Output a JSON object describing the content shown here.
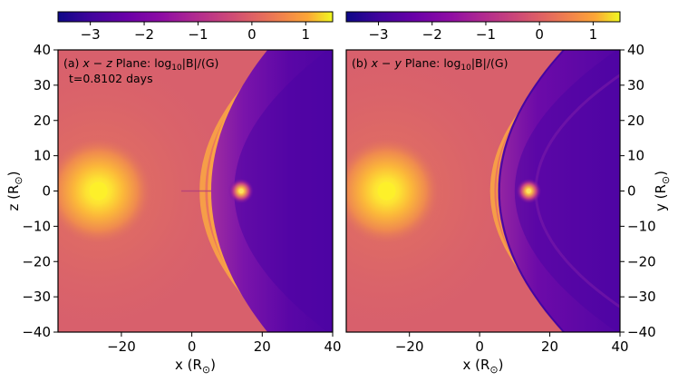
{
  "chart_data": [
    {
      "type": "heatmap",
      "panel_label": "(a)",
      "plane": "x − z",
      "title_mid": " Plane: log",
      "title_sub": "10",
      "title_tail": "|B|/(G)",
      "time_text": "t=0.8102 days",
      "xlabel": "x (R",
      "xlabel_sub": "⊙",
      "ylabel": "z (R",
      "ylabel_sub": "⊙",
      "xlim": [
        -38,
        40
      ],
      "ylim": [
        -40,
        40
      ],
      "xticks": [
        -20,
        0,
        20,
        40
      ],
      "yticks": [
        -40,
        -30,
        -20,
        -10,
        0,
        10,
        20,
        30,
        40
      ],
      "xtick_labels": [
        "−20",
        "0",
        "20",
        "40"
      ],
      "ytick_labels": [
        "−40",
        "−30",
        "−20",
        "−10",
        "0",
        "10",
        "20",
        "30",
        "40"
      ],
      "sources": [
        {
          "name": "Sun",
          "x": -26.5,
          "y": 0
        },
        {
          "name": "body",
          "x": 14,
          "y": 0
        }
      ],
      "colorbar": {
        "range": [
          -3.6,
          1.5
        ],
        "ticks": [
          -3,
          -2,
          -1,
          0,
          1
        ],
        "tick_labels": [
          "−3",
          "−2",
          "−1",
          "0",
          "1"
        ],
        "colormap": "plasma"
      }
    },
    {
      "type": "heatmap",
      "panel_label": "(b)",
      "plane": "x − y",
      "title_mid": " Plane: log",
      "title_sub": "10",
      "title_tail": "|B|/(G)",
      "xlabel": "x (R",
      "xlabel_sub": "⊙",
      "ylabel": "y (R",
      "ylabel_sub": "⊙",
      "xlim": [
        -38,
        40
      ],
      "ylim": [
        -40,
        40
      ],
      "xticks": [
        -20,
        0,
        20,
        40
      ],
      "yticks": [
        -40,
        -30,
        -20,
        -10,
        0,
        10,
        20,
        30,
        40
      ],
      "xtick_labels": [
        "−20",
        "0",
        "20",
        "40"
      ],
      "ytick_labels": [
        "−40",
        "−30",
        "−20",
        "−10",
        "0",
        "10",
        "20",
        "30",
        "40"
      ],
      "sources": [
        {
          "name": "Sun",
          "x": -26.5,
          "y": 0
        },
        {
          "name": "body",
          "x": 14,
          "y": 0
        }
      ],
      "colorbar": {
        "range": [
          -3.6,
          1.5
        ],
        "ticks": [
          -3,
          -2,
          -1,
          0,
          1
        ],
        "tick_labels": [
          "−3",
          "−2",
          "−1",
          "0",
          "1"
        ],
        "colormap": "plasma"
      }
    }
  ],
  "colors": {
    "background": "#d8606c",
    "sun_core": "#fdf02a",
    "sun_glow": "#fca336",
    "sheath": "#f9a345",
    "cavity_dark": "#4d04a4",
    "cavity_mid": "#8113a8",
    "body_core": "#fce35c"
  }
}
